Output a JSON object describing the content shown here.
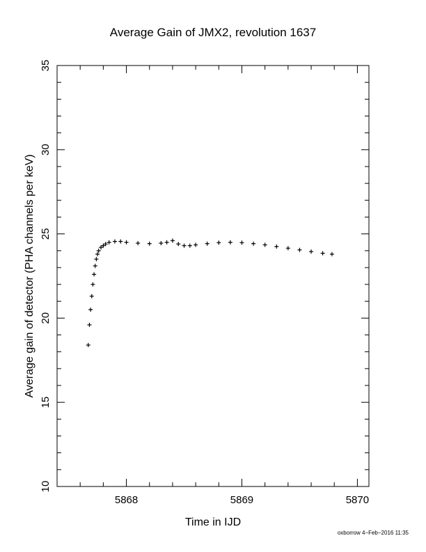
{
  "chart_data": {
    "type": "scatter",
    "title": "Average Gain of JMX2, revolution 1637",
    "xlabel": "Time in IJD",
    "ylabel": "Average gain of detector (PHA channels per keV)",
    "xlim": [
      5867.4,
      5870.1
    ],
    "ylim": [
      10,
      35
    ],
    "xticks": [
      5868,
      5869,
      5870
    ],
    "yticks": [
      10,
      15,
      20,
      25,
      30,
      35
    ],
    "marker": "plus",
    "grid": false,
    "series": [
      {
        "x": [
          5867.67,
          5867.68,
          5867.69,
          5867.7,
          5867.71,
          5867.72,
          5867.73,
          5867.74,
          5867.75,
          5867.76,
          5867.78,
          5867.8,
          5867.82,
          5867.85,
          5867.9,
          5867.95,
          5868.0,
          5868.1,
          5868.2,
          5868.3,
          5868.35,
          5868.4,
          5868.45,
          5868.5,
          5868.55,
          5868.6,
          5868.7,
          5868.8,
          5868.9,
          5869.0,
          5869.1,
          5869.2,
          5869.3,
          5869.4,
          5869.5,
          5869.6,
          5869.7,
          5869.78
        ],
        "values": [
          18.4,
          19.6,
          20.5,
          21.3,
          22.0,
          22.6,
          23.1,
          23.5,
          23.8,
          24.0,
          24.2,
          24.3,
          24.4,
          24.5,
          24.55,
          24.55,
          24.5,
          24.45,
          24.42,
          24.45,
          24.5,
          24.6,
          24.4,
          24.3,
          24.3,
          24.35,
          24.42,
          24.48,
          24.5,
          24.48,
          24.42,
          24.35,
          24.25,
          24.15,
          24.05,
          23.95,
          23.85,
          23.8
        ]
      }
    ]
  },
  "footer": {
    "text": "oxborrow  4−Feb−2016 11:35"
  }
}
